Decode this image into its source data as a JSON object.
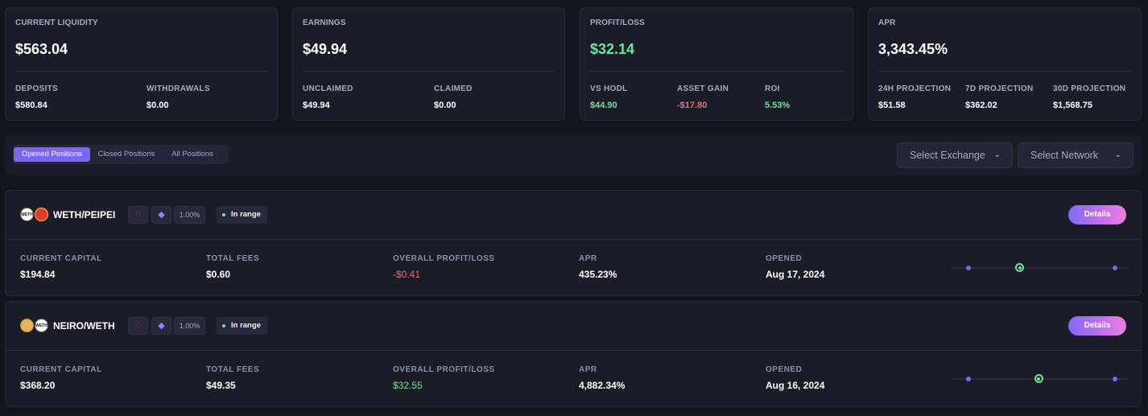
{
  "stats": {
    "liquidity": {
      "label": "CURRENT LIQUIDITY",
      "value": "$563.04",
      "subs": [
        {
          "label": "DEPOSITS",
          "value": "$580.84"
        },
        {
          "label": "WITHDRAWALS",
          "value": "$0.00"
        }
      ]
    },
    "earnings": {
      "label": "EARNINGS",
      "value": "$49.94",
      "subs": [
        {
          "label": "UNCLAIMED",
          "value": "$49.94"
        },
        {
          "label": "CLAIMED",
          "value": "$0.00"
        }
      ]
    },
    "profit": {
      "label": "PROFIT/LOSS",
      "value": "$32.14",
      "subs": [
        {
          "label": "VS HODL",
          "value": "$44.90"
        },
        {
          "label": "ASSET GAIN",
          "value": "-$17.80"
        },
        {
          "label": "ROI",
          "value": "5.53%"
        }
      ]
    },
    "apr": {
      "label": "APR",
      "value": "3,343.45%",
      "subs": [
        {
          "label": "24H PROJECTION",
          "value": "$51.58"
        },
        {
          "label": "7D PROJECTION",
          "value": "$362.02"
        },
        {
          "label": "30D PROJECTION",
          "value": "$1,568.75"
        }
      ]
    }
  },
  "tabs": [
    "Opened Positions",
    "Closed Positions",
    "All Positions"
  ],
  "filters": {
    "exchange": "Select Exchange",
    "network": "Select Network"
  },
  "positions": [
    {
      "pair": "WETH/PEIPEI",
      "fee": "1.00%",
      "status": "In range",
      "details_label": "Details",
      "metrics": [
        {
          "label": "CURRENT CAPITAL",
          "value": "$194.84"
        },
        {
          "label": "TOTAL FEES",
          "value": "$0.60"
        },
        {
          "label": "OVERALL PROFIT/LOSS",
          "value": "-$0.41"
        },
        {
          "label": "APR",
          "value": "435.23%"
        },
        {
          "label": "OPENED",
          "value": "Aug 17, 2024"
        }
      ],
      "range_position": 0.35
    },
    {
      "pair": "NEIRO/WETH",
      "fee": "1.00%",
      "status": "In range",
      "details_label": "Details",
      "metrics": [
        {
          "label": "CURRENT CAPITAL",
          "value": "$368.20"
        },
        {
          "label": "TOTAL FEES",
          "value": "$49.35"
        },
        {
          "label": "OVERALL PROFIT/LOSS",
          "value": "$32.55"
        },
        {
          "label": "APR",
          "value": "4,882.34%"
        },
        {
          "label": "OPENED",
          "value": "Aug 16, 2024"
        }
      ],
      "range_position": 0.48
    }
  ],
  "colors": {
    "accent": "#7b66f0",
    "positive": "#6ee59b",
    "negative": "#f26b6b",
    "card_bg": "#1a1d27"
  },
  "icons": {
    "exchange": "uniswap-icon",
    "network": "ethereum-icon",
    "dropdown": "chevron-down-icon"
  }
}
